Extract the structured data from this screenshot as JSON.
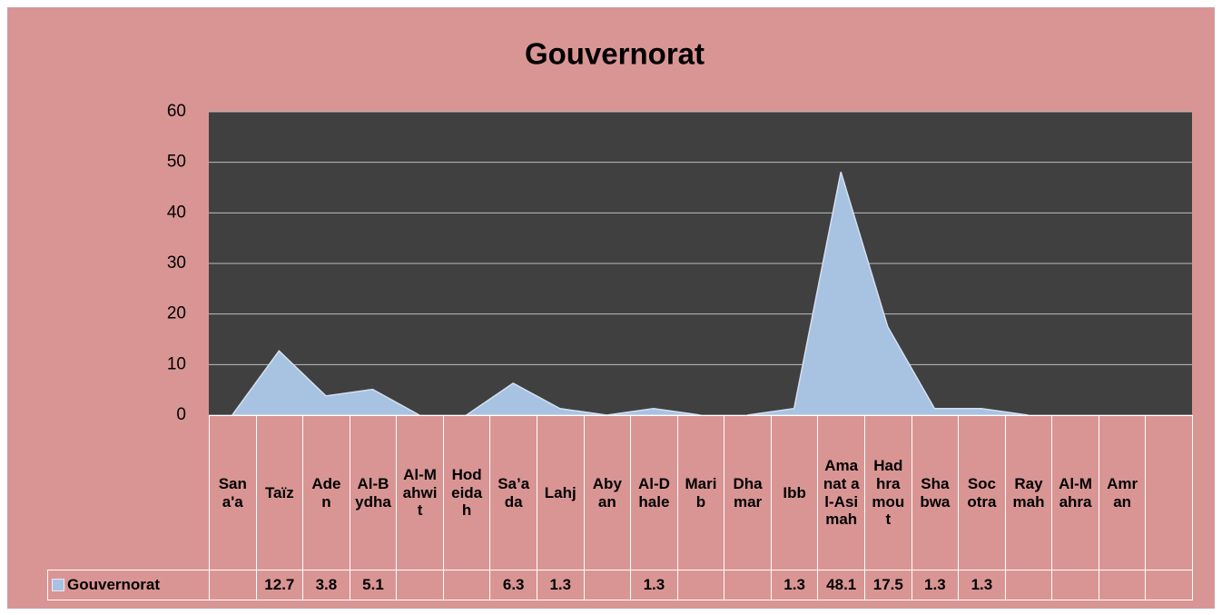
{
  "chart_data": {
    "type": "area",
    "title": "Gouvernorat",
    "categories": [
      "Sana'a",
      "Taïz",
      "Aden",
      "Al-Bydha",
      "Al-Mahwit",
      "Hodeidah",
      "Sa’ada",
      "Lahj",
      "Abyan",
      "Al-Dhale",
      "Marib",
      "Dhamar",
      "Ibb",
      "Amanat al-Asimah",
      "Hadhramout",
      "Shabwa",
      "Socotra",
      "Raymah",
      "Al-Mahra",
      "Amran",
      null
    ],
    "series": [
      {
        "name": "Gouvernorat",
        "color": "#a8c2e2",
        "values": [
          null,
          12.7,
          3.8,
          5.1,
          null,
          null,
          6.3,
          1.3,
          null,
          1.3,
          null,
          null,
          1.3,
          48.1,
          17.5,
          1.3,
          1.3,
          null,
          null,
          null,
          null
        ]
      }
    ],
    "ylim": [
      0,
      60
    ],
    "yticks": [
      0,
      10,
      20,
      30,
      40,
      50,
      60
    ],
    "grid": true
  }
}
